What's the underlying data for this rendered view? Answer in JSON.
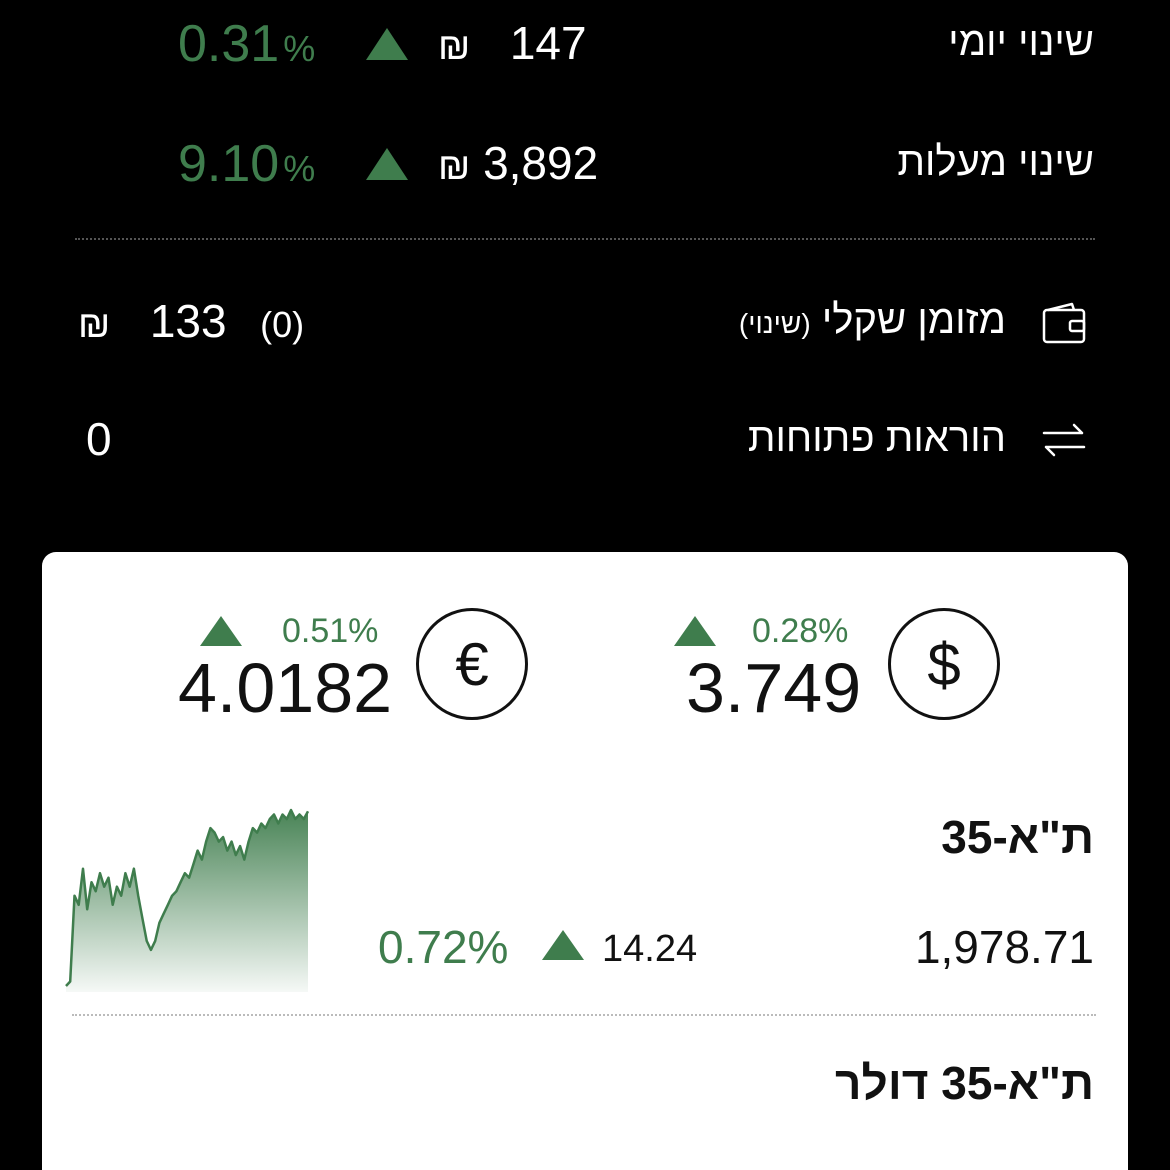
{
  "summary": {
    "daily": {
      "label": "שינוי יומי",
      "amount": "147",
      "currency": "₪",
      "pct": "0.31",
      "pct_sign": "%"
    },
    "total": {
      "label": "שינוי מעלות",
      "amount": "3,892",
      "currency": "₪",
      "pct": "9.10",
      "pct_sign": "%"
    },
    "cash": {
      "label": "מזומן שקלי",
      "sub_label": "(שינוי)",
      "change": "(0)",
      "amount": "133",
      "currency": "₪",
      "icon": "wallet-icon"
    },
    "orders": {
      "label": "הוראות פתוחות",
      "value": "0",
      "icon": "transfer-arrows-icon"
    }
  },
  "currencies": {
    "usd": {
      "symbol": "$",
      "rate": "3.749",
      "pct": "0.28%",
      "icon": "dollar-icon"
    },
    "eur": {
      "symbol": "€",
      "rate": "4.0182",
      "pct": "0.51%",
      "icon": "euro-icon"
    }
  },
  "indices": [
    {
      "name": "ת\"א-35",
      "value": "1,978.71",
      "change": "14.24",
      "pct": "0.72%"
    },
    {
      "name": "ת\"א-35 דולר"
    }
  ],
  "colors": {
    "positive": "#3f7d4d",
    "background": "#000000",
    "card": "#ffffff"
  },
  "chart_data": {
    "type": "area",
    "series": [
      {
        "values": [
          1940,
          1941,
          1960,
          1958,
          1966,
          1957,
          1963,
          1961,
          1965,
          1962,
          1964,
          1958,
          1962,
          1960,
          1965,
          1962,
          1966,
          1960,
          1955,
          1950,
          1948,
          1950,
          1954,
          1956,
          1958,
          1960,
          1961,
          1963,
          1965,
          1964,
          1967,
          1970,
          1968,
          1972,
          1975,
          1974,
          1972,
          1973,
          1970,
          1972,
          1969,
          1971,
          1968,
          1972,
          1975,
          1974,
          1976,
          1975,
          1977,
          1978,
          1976,
          1978,
          1977,
          1979,
          1977,
          1978,
          1977,
          1978.71
        ]
      }
    ]
  }
}
